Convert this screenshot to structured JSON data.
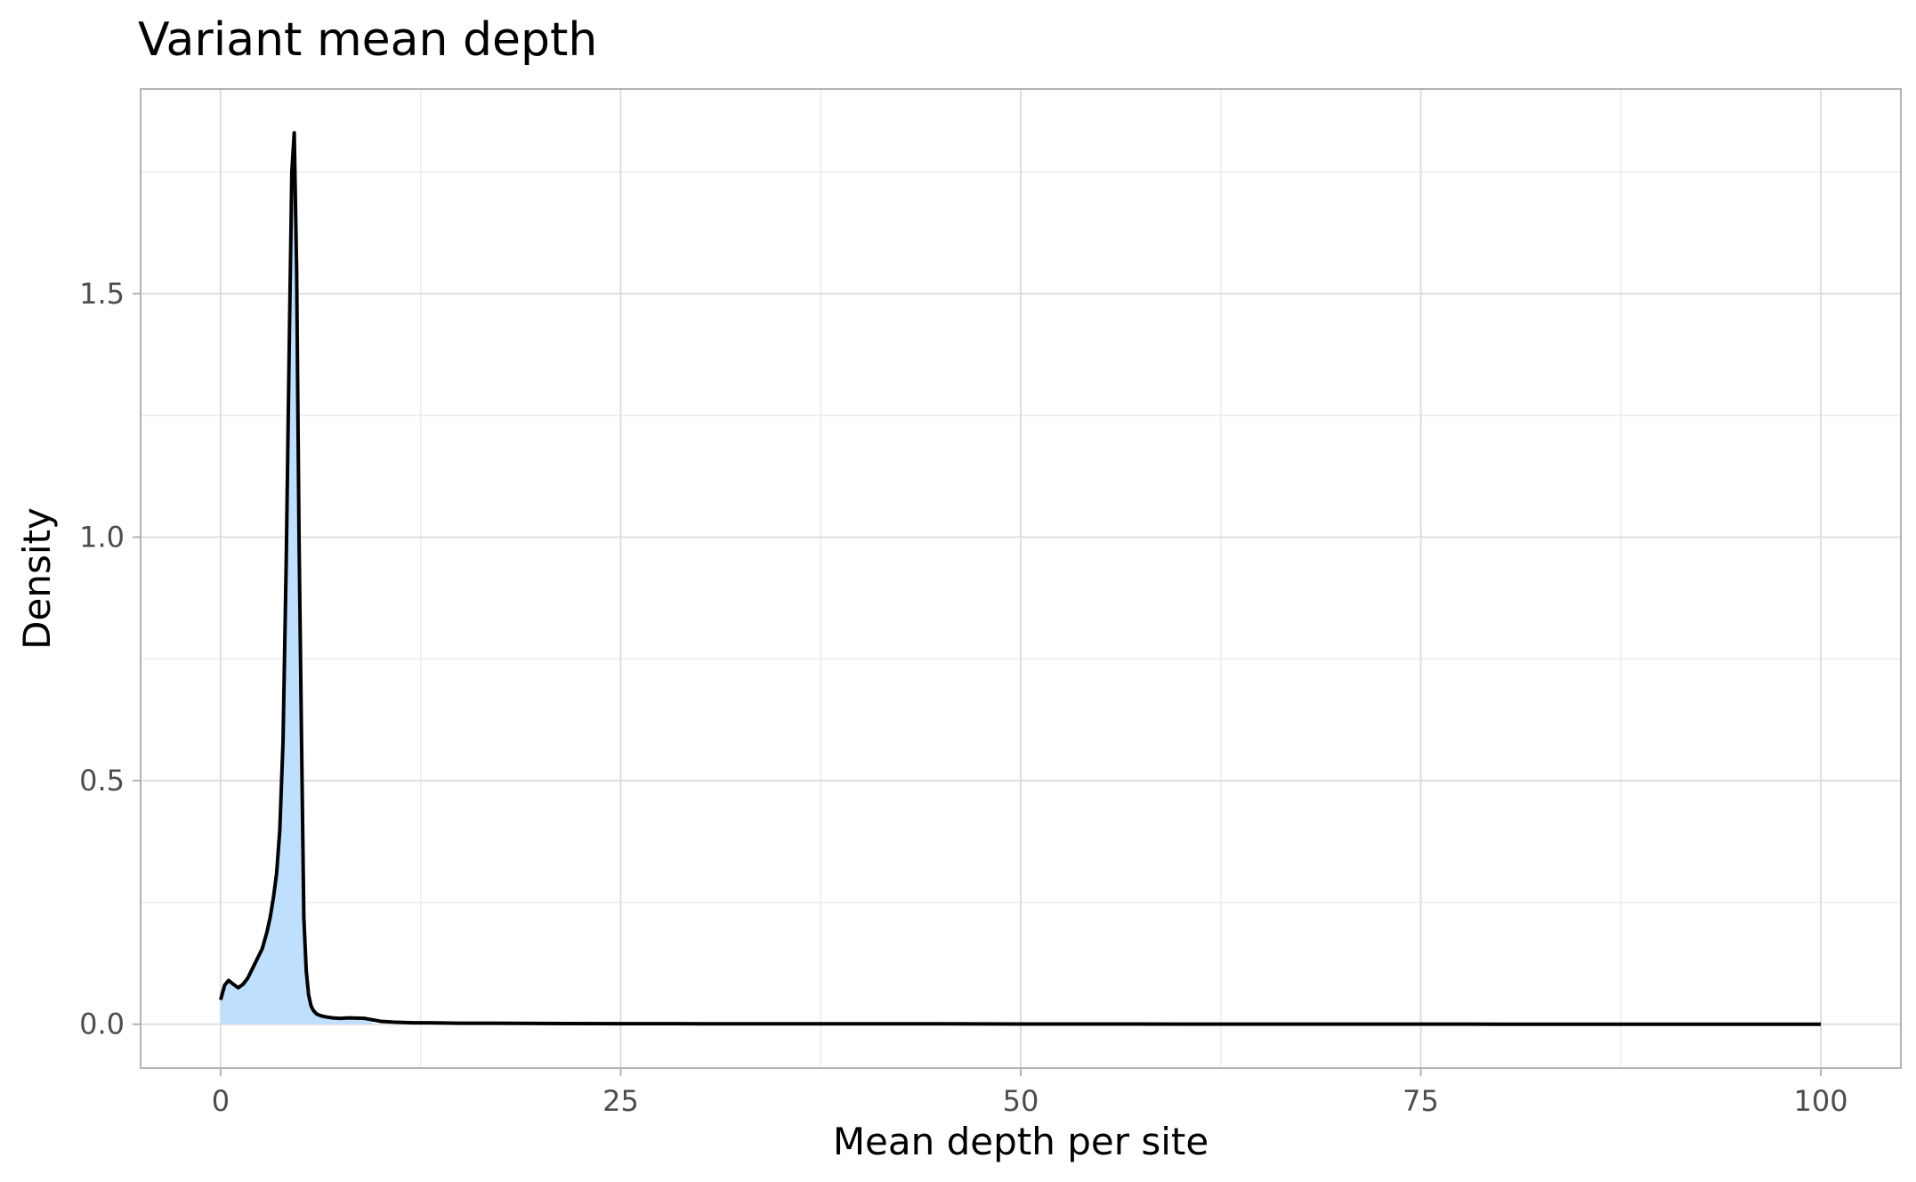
{
  "chart_data": {
    "type": "area",
    "title": "Variant mean depth",
    "xlabel": "Mean depth per site",
    "ylabel": "Density",
    "xlim": [
      -5,
      105
    ],
    "ylim": [
      -0.09,
      1.92
    ],
    "x_ticks": [
      0,
      25,
      50,
      75,
      100
    ],
    "x_tick_labels": [
      "0",
      "25",
      "50",
      "75",
      "100"
    ],
    "y_ticks": [
      0.0,
      0.5,
      1.0,
      1.5
    ],
    "y_tick_labels": [
      "0.0",
      "0.5",
      "1.0",
      "1.5"
    ],
    "grid": true,
    "fill_color": "#bfdfff",
    "line_color": "#000000",
    "fill_x_max": 9.5,
    "series": [
      {
        "x": [
          0,
          0.25,
          0.5,
          0.8,
          1.1,
          1.4,
          1.7,
          2.0,
          2.3,
          2.6,
          2.9,
          3.1,
          3.3,
          3.5,
          3.7,
          3.9,
          4.1,
          4.3,
          4.45,
          4.6,
          4.75,
          4.9,
          5.05,
          5.2,
          5.35,
          5.5,
          5.65,
          5.8,
          6.0,
          6.3,
          6.6,
          7.0,
          7.5,
          8.0,
          9.0,
          9.5,
          10.0,
          11.0,
          12.0,
          13.0,
          15.0,
          17.0,
          20.0,
          25.0,
          30.0,
          35.0,
          40.0,
          45.0,
          50.0,
          60.0,
          70.0,
          80.0,
          90.0,
          100.0
        ],
        "y": [
          0.05,
          0.08,
          0.09,
          0.082,
          0.075,
          0.082,
          0.095,
          0.115,
          0.135,
          0.155,
          0.19,
          0.22,
          0.26,
          0.31,
          0.4,
          0.58,
          0.95,
          1.42,
          1.75,
          1.83,
          1.55,
          1.0,
          0.6,
          0.22,
          0.11,
          0.06,
          0.038,
          0.028,
          0.021,
          0.017,
          0.015,
          0.013,
          0.012,
          0.013,
          0.012,
          0.009,
          0.006,
          0.004,
          0.003,
          0.003,
          0.002,
          0.002,
          0.0015,
          0.0012,
          0.001,
          0.0008,
          0.0008,
          0.0008,
          0.0005,
          0.0003,
          0.0002,
          0.0001,
          0.0001,
          0.0001
        ]
      }
    ]
  }
}
